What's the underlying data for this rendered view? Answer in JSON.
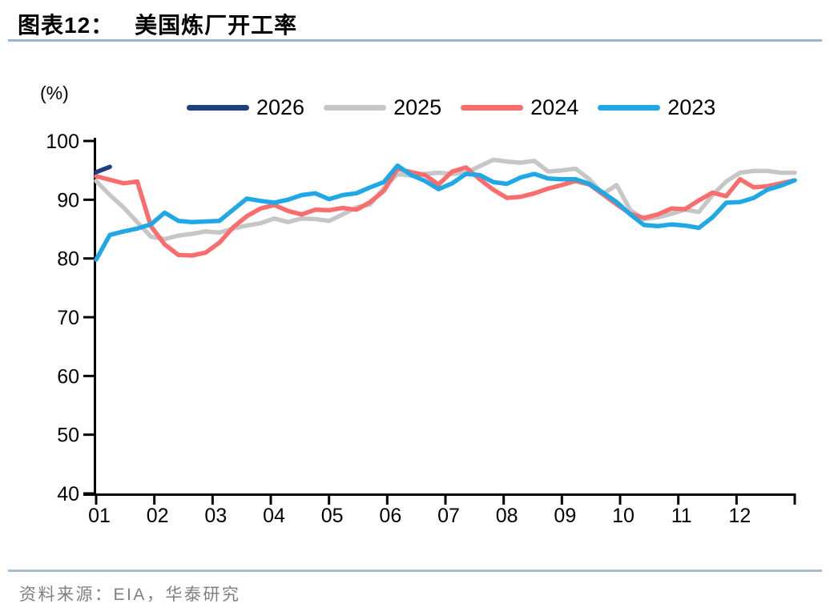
{
  "header": {
    "chart_label": "图表12：",
    "title": "美国炼厂开工率"
  },
  "footer": {
    "source": "资料来源：EIA，华泰研究"
  },
  "chart_data": {
    "type": "line",
    "title": "美国炼厂开工率",
    "unit_label": "(%)",
    "legend_position": "top",
    "grid": false,
    "x_axis": {
      "desc": "month of year, weekly data points",
      "tick_labels": [
        "01",
        "02",
        "03",
        "04",
        "05",
        "06",
        "07",
        "08",
        "09",
        "10",
        "11",
        "12"
      ]
    },
    "y_axis": {
      "ticks": [
        40,
        50,
        60,
        70,
        80,
        90,
        100
      ],
      "ylim": [
        40,
        100
      ]
    },
    "series": [
      {
        "name": "2026",
        "color": "#1B4080",
        "values": [
          94.7,
          95.6
        ]
      },
      {
        "name": "2025",
        "color": "#C6C6C6",
        "values": [
          93.2,
          90.8,
          88.7,
          86.2,
          83.7,
          83.3,
          83.9,
          84.2,
          84.6,
          84.4,
          85.1,
          85.6,
          86.0,
          86.8,
          86.2,
          86.8,
          86.7,
          86.4,
          87.5,
          88.7,
          89.2,
          92.0,
          94.4,
          94.1,
          94.4,
          94.6,
          94.4,
          94.6,
          95.7,
          96.8,
          96.5,
          96.3,
          96.6,
          94.8,
          95.0,
          95.3,
          93.5,
          91.0,
          92.5,
          88.2,
          86.7,
          87.0,
          87.6,
          88.3,
          87.9,
          90.8,
          93.1,
          94.6,
          94.9,
          94.9,
          94.6,
          94.6
        ]
      },
      {
        "name": "2024",
        "color": "#F96D6D",
        "values": [
          94.0,
          93.4,
          92.8,
          93.1,
          85.5,
          82.4,
          80.6,
          80.5,
          81.0,
          82.7,
          85.3,
          87.2,
          88.5,
          89.1,
          88.1,
          87.5,
          88.3,
          88.2,
          88.6,
          88.3,
          89.6,
          91.5,
          95.3,
          94.7,
          94.2,
          92.6,
          94.8,
          95.5,
          93.5,
          91.7,
          90.3,
          90.5,
          91.1,
          91.9,
          92.5,
          93.2,
          92.6,
          90.9,
          89.2,
          87.6,
          86.9,
          87.5,
          88.5,
          88.4,
          89.9,
          91.2,
          90.6,
          93.5,
          92.1,
          92.3,
          92.8,
          93.3
        ]
      },
      {
        "name": "2023",
        "color": "#20A8E6",
        "values": [
          79.8,
          84.0,
          84.6,
          85.1,
          85.8,
          87.8,
          86.4,
          86.2,
          86.3,
          86.4,
          88.3,
          90.2,
          89.8,
          89.5,
          90.0,
          90.8,
          91.1,
          90.1,
          90.8,
          91.1,
          92.1,
          93.0,
          95.8,
          94.2,
          93.2,
          91.8,
          92.8,
          94.4,
          94.2,
          93.0,
          92.7,
          93.8,
          94.4,
          93.6,
          93.5,
          93.5,
          92.7,
          91.2,
          89.6,
          87.5,
          85.7,
          85.5,
          85.8,
          85.6,
          85.2,
          87.0,
          89.5,
          89.6,
          90.3,
          91.7,
          92.4,
          93.3
        ]
      }
    ]
  }
}
